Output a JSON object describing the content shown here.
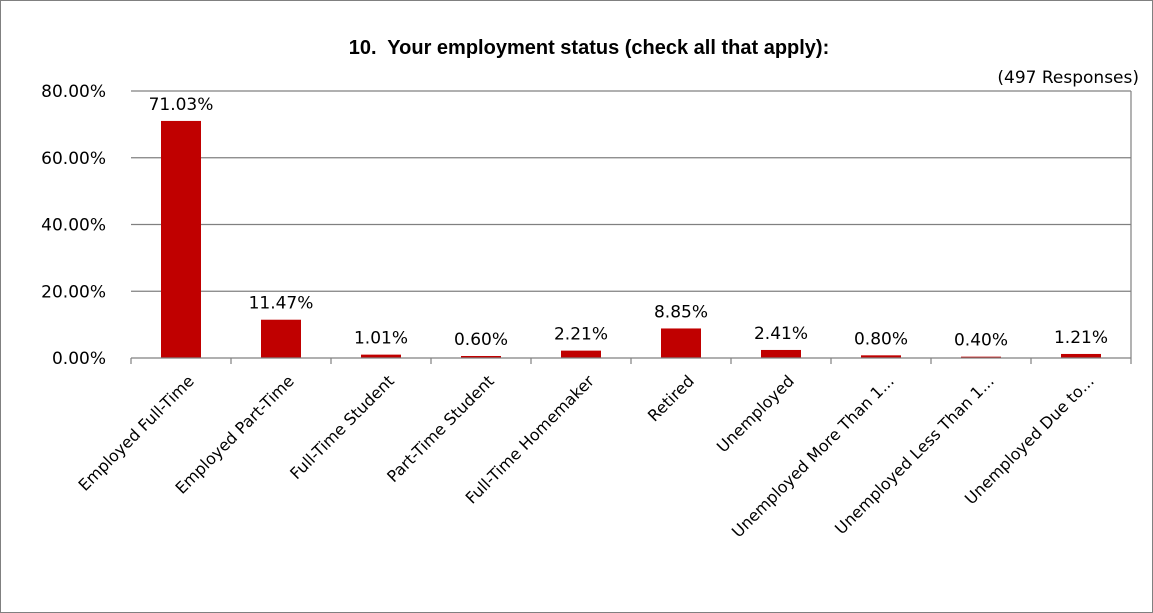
{
  "chart_data": {
    "type": "bar",
    "title": "10.  Your employment status (check all that apply):",
    "subtitle": "(497 Responses)",
    "categories": [
      "Employed Full-Time",
      "Employed Part-Time",
      "Full-Time Student",
      "Part-Time Student",
      "Full-Time Homemaker",
      "Retired",
      "Unemployed",
      "Unemployed More Than 1...",
      "Unemployed Less Than 1...",
      "Unemployed Due to..."
    ],
    "values": [
      71.03,
      11.47,
      1.01,
      0.6,
      2.21,
      8.85,
      2.41,
      0.8,
      0.4,
      1.21
    ],
    "data_labels": [
      "71.03%",
      "11.47%",
      "1.01%",
      "0.60%",
      "2.21%",
      "8.85%",
      "2.41%",
      "0.80%",
      "0.40%",
      "1.21%"
    ],
    "y_ticks": [
      "0.00%",
      "20.00%",
      "40.00%",
      "60.00%",
      "80.00%"
    ],
    "ylim": [
      0,
      80
    ],
    "grid": true,
    "legend": "none",
    "colors": {
      "bar": "#C00000",
      "grid": "#808080",
      "axis": "#808080",
      "frame": "#808080"
    }
  }
}
